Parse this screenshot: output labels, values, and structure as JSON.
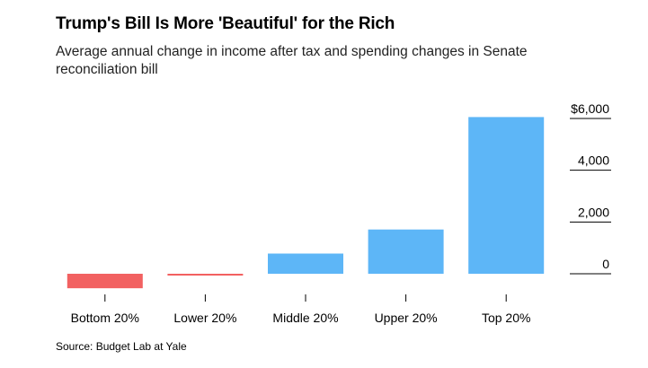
{
  "title": "Trump's Bill Is More 'Beautiful' for the Rich",
  "subtitle": "Average annual change in income after tax and spending changes in Senate reconciliation bill",
  "source": "Source: Budget Lab at Yale",
  "colors": {
    "negative": "#f26161",
    "positive": "#5db6f7",
    "axis": "#000000"
  },
  "chart_data": {
    "type": "bar",
    "categories": [
      "Bottom 20%",
      "Lower 20%",
      "Middle 20%",
      "Upper 20%",
      "Top 20%"
    ],
    "values": [
      -560,
      -70,
      780,
      1710,
      6055
    ],
    "ylim": [
      -600,
      6000
    ],
    "yticks": [
      0,
      2000,
      4000,
      6000
    ],
    "ytick_labels": [
      "0",
      "2,000",
      "4,000",
      "$6,000"
    ],
    "y_axis_side": "right",
    "grid": false,
    "legend": "none"
  }
}
